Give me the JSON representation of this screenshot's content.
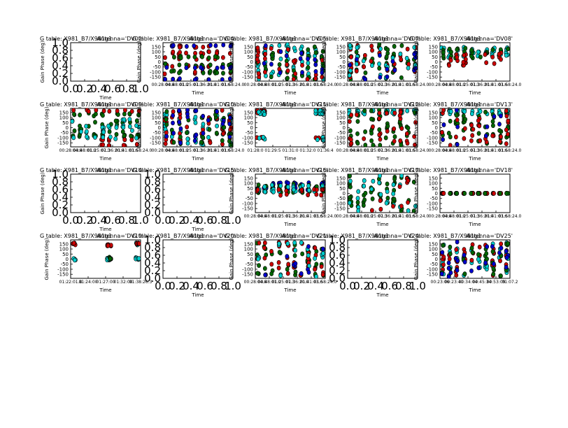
{
  "figure": {
    "background": "#ffffff"
  },
  "style": {
    "colors": {
      "red": "#cc0000",
      "green": "#006600",
      "cyan": "#00cccc",
      "blue": "#0000cc"
    }
  },
  "chart_data": [
    {
      "type": "scatter",
      "title_left": "G table: X981_B7/X981g1",
      "title_right": "Antenna='DV02'",
      "xlabel": "Time",
      "ylabel": "Gain Phase (deg)",
      "empty": true,
      "x_ticks": [
        "0.0",
        "0.2",
        "0.4",
        "0.6",
        "0.8",
        "1.0"
      ],
      "y_ticks": [
        "0.0",
        "0.2",
        "0.4",
        "0.6",
        "0.8",
        "1.0"
      ],
      "series": []
    },
    {
      "type": "scatter",
      "title_left": "G table: X981_B7/X981g1",
      "title_right": "Antenna='DV04'",
      "xlabel": "Time",
      "ylabel": "Gain Phase (deg)",
      "empty": false,
      "x_ticks": [
        "00:28:04.8",
        "00:48:01.0",
        "01:25:07.3",
        "01:36:20.0",
        "01:41:03.6",
        "01:58:24.0"
      ],
      "y_ticks": [
        "150",
        "100",
        "50",
        "0",
        "-50",
        "-100",
        "-150"
      ],
      "ylim": [
        -190,
        190
      ],
      "series": [
        {
          "color": "red",
          "pattern": "bands",
          "bands": [
            -110,
            -45,
            35,
            90,
            150
          ],
          "spread": 12,
          "n": 45
        },
        {
          "color": "green",
          "pattern": "bands",
          "bands": [
            -100,
            -30,
            45
          ],
          "spread": 12,
          "n": 35
        },
        {
          "color": "blue",
          "pattern": "bands",
          "bands": [
            -170,
            -60,
            160
          ],
          "spread": 8,
          "n": 30
        }
      ]
    },
    {
      "type": "scatter",
      "title_left": "G table: X981_B7/X981g1",
      "title_right": "Antenna='DV05'",
      "xlabel": "Time",
      "ylabel": "Gain Phase (deg)",
      "empty": false,
      "x_ticks": [
        "00:28:04.8",
        "00:48:01.0",
        "01:25:07.3",
        "01:36:20.0",
        "01:41:03.6",
        "01:58:24.0"
      ],
      "y_ticks": [
        "150",
        "100",
        "50",
        "0",
        "-50",
        "-100",
        "-150"
      ],
      "ylim": [
        -190,
        190
      ],
      "series": [
        {
          "color": "cyan",
          "pattern": "columns",
          "n": 60
        },
        {
          "color": "green",
          "pattern": "columns",
          "n": 35
        },
        {
          "color": "red",
          "pattern": "columns",
          "n": 30
        },
        {
          "color": "blue",
          "pattern": "columns",
          "n": 15
        }
      ]
    },
    {
      "type": "scatter",
      "title_left": "G table: X981_B7/X981g1",
      "title_right": "Antenna='DV07'",
      "xlabel": "Time",
      "ylabel": "Gain Phase (deg)",
      "empty": false,
      "x_ticks": [
        "00:28:04.8",
        "00:48:01.0",
        "01:25:07.3",
        "01:36:20.0",
        "01:41:03.6",
        "01:58:24.0"
      ],
      "y_ticks": [
        "150",
        "100",
        "50",
        "0",
        "-50",
        "-100",
        "-150"
      ],
      "ylim": [
        -190,
        190
      ],
      "series": [
        {
          "color": "green",
          "pattern": "columns",
          "n": 45
        },
        {
          "color": "red",
          "pattern": "columns",
          "n": 30
        },
        {
          "color": "cyan",
          "pattern": "columns",
          "n": 25
        },
        {
          "color": "blue",
          "pattern": "columns",
          "n": 15
        }
      ]
    },
    {
      "type": "scatter",
      "title_left": "G table: X981_B7/X981g1",
      "title_right": "Antenna='DV08'",
      "xlabel": "Time",
      "ylabel": "Gain Phase (deg)",
      "empty": false,
      "x_ticks": [
        "00:28:04.8",
        "00:48:01.0",
        "01:25:07.3",
        "01:36:20.0",
        "01:41:03.6",
        "01:58:24.0"
      ],
      "y_ticks": [
        "150",
        "100",
        "50",
        "0",
        "-50",
        "-100",
        "-150"
      ],
      "ylim": [
        -190,
        190
      ],
      "series": [
        {
          "color": "cyan",
          "pattern": "bands",
          "bands": [
            60,
            100,
            130
          ],
          "spread": 15,
          "n": 35
        },
        {
          "color": "green",
          "pattern": "bands",
          "bands": [
            50,
            90,
            120
          ],
          "spread": 15,
          "n": 30
        },
        {
          "color": "red",
          "pattern": "bands",
          "bands": [
            -20,
            30,
            80
          ],
          "spread": 20,
          "n": 25
        }
      ]
    },
    {
      "type": "scatter",
      "title_left": "G table: X981_B7/X981g1",
      "title_right": "Antenna='DV09'",
      "xlabel": "Time",
      "ylabel": "Gain Phase (deg)",
      "empty": false,
      "x_ticks": [
        "00:28:04.8",
        "00:48:01.0",
        "01:25:07.3",
        "01:36:20.0",
        "01:41:03.6",
        "01:58:24.0"
      ],
      "y_ticks": [
        "150",
        "100",
        "50",
        "0",
        "-50",
        "-100",
        "-150"
      ],
      "ylim": [
        -190,
        190
      ],
      "series": [
        {
          "color": "green",
          "pattern": "bands",
          "bands": [
            -80,
            -30,
            20,
            60,
            130
          ],
          "spread": 15,
          "n": 50
        },
        {
          "color": "red",
          "pattern": "bands",
          "bands": [
            -170,
            -120,
            170
          ],
          "spread": 10,
          "n": 25
        },
        {
          "color": "cyan",
          "pattern": "bands",
          "bands": [
            -100,
            -40,
            10,
            70
          ],
          "spread": 12,
          "n": 35
        }
      ]
    },
    {
      "type": "scatter",
      "title_left": "G table: X981_B7/X981g1",
      "title_right": "Antenna='DV10'",
      "xlabel": "Time",
      "ylabel": "Gain Phase (deg)",
      "empty": false,
      "x_ticks": [
        "00:28:04.8",
        "00:48:01.0",
        "01:25:07.3",
        "01:36:20.0",
        "01:41:03.6",
        "01:58:24.0"
      ],
      "y_ticks": [
        "150",
        "100",
        "50",
        "0",
        "-50",
        "-100",
        "-150"
      ],
      "ylim": [
        -190,
        190
      ],
      "series": [
        {
          "color": "cyan",
          "pattern": "columns",
          "n": 50
        },
        {
          "color": "red",
          "pattern": "columns",
          "n": 40
        },
        {
          "color": "green",
          "pattern": "columns",
          "n": 35
        },
        {
          "color": "blue",
          "pattern": "columns",
          "n": 25
        }
      ]
    },
    {
      "type": "scatter",
      "title_left": "G table: X981_B7/X981g1",
      "title_right": "Antenna='DV11'",
      "xlabel": "Time",
      "ylabel": "Gain Phase (deg)",
      "empty": false,
      "x_ticks": [
        "01:28:0",
        "01:29:5",
        "01:31:0",
        "01:32:0",
        "01:36:4"
      ],
      "y_ticks": [
        "150",
        "100",
        "50",
        "0",
        "-50",
        "-100",
        "-150"
      ],
      "ylim": [
        -190,
        190
      ],
      "series": [
        {
          "color": "red",
          "pattern": "edges",
          "n": 35
        },
        {
          "color": "cyan",
          "pattern": "edges",
          "n": 30
        }
      ]
    },
    {
      "type": "scatter",
      "title_left": "G table: X981_B7/X981g1",
      "title_right": "Antenna='DV12'",
      "xlabel": "Time",
      "ylabel": "Gain Phase (deg)",
      "empty": false,
      "x_ticks": [
        "00:28:04.8",
        "00:48:01.0",
        "01:25:07.3",
        "01:36:20.0",
        "01:41:03.6",
        "01:58:24.0"
      ],
      "y_ticks": [
        "150",
        "100",
        "50",
        "0",
        "-50",
        "-100",
        "-150"
      ],
      "ylim": [
        -190,
        190
      ],
      "series": [
        {
          "color": "cyan",
          "pattern": "bands",
          "bands": [
            140,
            165
          ],
          "spread": 8,
          "n": 30
        },
        {
          "color": "green",
          "pattern": "columns",
          "n": 45
        },
        {
          "color": "red",
          "pattern": "columns",
          "n": 35
        }
      ]
    },
    {
      "type": "scatter",
      "title_left": "G table: X981_B7/X981g1",
      "title_right": "Antenna='DV13'",
      "xlabel": "Time",
      "ylabel": "Gain Phase (deg)",
      "empty": false,
      "x_ticks": [
        "00:28:04.8",
        "00:48:01.0",
        "01:25:07.3",
        "01:36:20.0",
        "01:41:03.6",
        "01:58:24.0"
      ],
      "y_ticks": [
        "150",
        "100",
        "50",
        "0",
        "-50",
        "-100",
        "-150"
      ],
      "ylim": [
        -190,
        190
      ],
      "series": [
        {
          "color": "cyan",
          "pattern": "bands",
          "bands": [
            140,
            165
          ],
          "spread": 8,
          "n": 35
        },
        {
          "color": "green",
          "pattern": "columns",
          "n": 45
        },
        {
          "color": "red",
          "pattern": "columns",
          "n": 30
        },
        {
          "color": "blue",
          "pattern": "columns",
          "n": 10
        }
      ]
    },
    {
      "type": "scatter",
      "title_left": "G table: X981_B7/X981g1",
      "title_right": "Antenna='DV14'",
      "xlabel": "Time",
      "ylabel": "Gain Phase (deg)",
      "empty": true,
      "x_ticks": [
        "0.0",
        "0.2",
        "0.4",
        "0.6",
        "0.8",
        "1.0"
      ],
      "y_ticks": [
        "0.0",
        "0.2",
        "0.4",
        "0.6",
        "0.8",
        "1.0"
      ],
      "series": []
    },
    {
      "type": "scatter",
      "title_left": "G table: X981_B7/X981g1",
      "title_right": "Antenna='DV15'",
      "xlabel": "Time",
      "ylabel": "Gain Phase (deg)",
      "empty": true,
      "x_ticks": [
        "0.0",
        "0.2",
        "0.4",
        "0.6",
        "0.8",
        "1.0"
      ],
      "y_ticks": [
        "0.0",
        "0.2",
        "0.4",
        "0.6",
        "0.8",
        "1.0"
      ],
      "series": []
    },
    {
      "type": "scatter",
      "title_left": "G table: X981_B7/X981g1",
      "title_right": "Antenna='DV16'",
      "xlabel": "Time",
      "ylabel": "Gain Phase (deg)",
      "empty": false,
      "x_ticks": [
        "00:28:04.8",
        "00:48:01.0",
        "01:25:07.3",
        "01:36:20.0",
        "01:41:03.6",
        "01:58:24.0"
      ],
      "y_ticks": [
        "150",
        "100",
        "50",
        "0",
        "-50",
        "-100",
        "-150"
      ],
      "ylim": [
        -190,
        190
      ],
      "series": [
        {
          "color": "blue",
          "pattern": "bands",
          "bands": [
            40,
            60,
            100
          ],
          "spread": 15,
          "n": 40
        },
        {
          "color": "green",
          "pattern": "bands",
          "bands": [
            20,
            50,
            80
          ],
          "spread": 15,
          "n": 40
        },
        {
          "color": "cyan",
          "pattern": "bands",
          "bands": [
            30,
            70
          ],
          "spread": 15,
          "n": 30
        },
        {
          "color": "red",
          "pattern": "bands",
          "bands": [
            -10,
            30
          ],
          "spread": 10,
          "n": 15
        }
      ]
    },
    {
      "type": "scatter",
      "title_left": "G table: X981_B7/X981g1",
      "title_right": "Antenna='DV17'",
      "xlabel": "Time",
      "ylabel": "Gain Phase (deg)",
      "empty": false,
      "x_ticks": [
        "00:28:04.8",
        "00:48:01.0",
        "01:25:07.3",
        "01:36:20.0",
        "01:41:03.6",
        "01:58:24.0"
      ],
      "y_ticks": [
        "150",
        "100",
        "50",
        "0",
        "-50",
        "-100",
        "-150"
      ],
      "ylim": [
        -190,
        190
      ],
      "series": [
        {
          "color": "green",
          "pattern": "columns",
          "n": 50
        },
        {
          "color": "cyan",
          "pattern": "columns",
          "n": 25
        },
        {
          "color": "red",
          "pattern": "columns",
          "n": 10
        }
      ]
    },
    {
      "type": "scatter",
      "title_left": "G table: X981_B7/X981g1",
      "title_right": "Antenna='DV18'",
      "xlabel": "Time",
      "ylabel": "Gain Phase (deg)",
      "empty": false,
      "x_ticks": [
        "00:28:04.8",
        "00:48:01.0",
        "01:25:07.3",
        "01:36:20.0",
        "01:41:03.6",
        "01:58:24.0"
      ],
      "y_ticks": [
        "150",
        "100",
        "50",
        "0",
        "-50",
        "-100",
        "-150"
      ],
      "ylim": [
        -190,
        190
      ],
      "series": [
        {
          "color": "red",
          "pattern": "bands",
          "bands": [
            0
          ],
          "spread": 0.5,
          "n": 40
        },
        {
          "color": "green",
          "pattern": "bands",
          "bands": [
            0
          ],
          "spread": 0.5,
          "n": 15
        }
      ]
    },
    {
      "type": "scatter",
      "title_left": "G table: X981_B7/X981g1",
      "title_right": "Antenna='DV19'",
      "xlabel": "Time",
      "ylabel": "Gain Phase (deg)",
      "empty": false,
      "x_ticks": [
        "01:22:01.8",
        "01:24:00",
        "01:27:00",
        "01:32:00",
        "01:38:26.3"
      ],
      "y_ticks": [
        "150",
        "100",
        "50",
        "0",
        "-50",
        "-100",
        "-150"
      ],
      "ylim": [
        -190,
        190
      ],
      "series": [
        {
          "color": "cyan",
          "pattern": "clusters",
          "centers": [
            [
              0.05,
              0
            ],
            [
              0.55,
              0
            ],
            [
              0.95,
              5
            ],
            [
              0.95,
              150
            ]
          ],
          "n": 30
        },
        {
          "color": "red",
          "pattern": "clusters",
          "centers": [
            [
              0.05,
              150
            ],
            [
              0.55,
              140
            ],
            [
              0.95,
              155
            ]
          ],
          "n": 20
        },
        {
          "color": "green",
          "pattern": "clusters",
          "centers": [
            [
              0.55,
              10
            ]
          ],
          "n": 6
        }
      ]
    },
    {
      "type": "scatter",
      "title_left": "G table: X981_B7/X981g1",
      "title_right": "Antenna='DV20'",
      "xlabel": "Time",
      "ylabel": "Gain Phase (deg)",
      "empty": true,
      "x_ticks": [
        "0.0",
        "0.2",
        "0.4",
        "0.6",
        "0.8",
        "1.0"
      ],
      "y_ticks": [
        "0.0",
        "0.2",
        "0.4",
        "0.6",
        "0.8",
        "1.0"
      ],
      "series": []
    },
    {
      "type": "scatter",
      "title_left": "G table: X981_B7/X981g1",
      "title_right": "Antenna='DV21'",
      "xlabel": "Time",
      "ylabel": "Gain Phase (deg)",
      "empty": false,
      "x_ticks": [
        "00:28:04.8",
        "00:48:01.0",
        "01:25:07.3",
        "01:36:20.0",
        "01:41:03.6",
        "01:58:24.0"
      ],
      "y_ticks": [
        "150",
        "100",
        "50",
        "0",
        "-50",
        "-100",
        "-150"
      ],
      "ylim": [
        -190,
        190
      ],
      "series": [
        {
          "color": "green",
          "pattern": "columns",
          "n": 45
        },
        {
          "color": "red",
          "pattern": "columns",
          "n": 35
        },
        {
          "color": "cyan",
          "pattern": "columns",
          "n": 20
        },
        {
          "color": "blue",
          "pattern": "columns",
          "n": 10
        }
      ]
    },
    {
      "type": "scatter",
      "title_left": "G table: X981_B7/X981g1",
      "title_right": "Antenna='DV24'",
      "xlabel": "Time",
      "ylabel": "Gain Phase (deg)",
      "empty": true,
      "x_ticks": [
        "0.0",
        "0.2",
        "0.4",
        "0.6",
        "0.8",
        "1.0"
      ],
      "y_ticks": [
        "0.0",
        "0.2",
        "0.4",
        "0.6",
        "0.8",
        "1.0"
      ],
      "series": []
    },
    {
      "type": "scatter",
      "title_left": "G table: X981_B7/X981g1",
      "title_right": "Antenna='DV25'",
      "xlabel": "Time",
      "ylabel": "Gain Phase (deg)",
      "empty": false,
      "x_ticks": [
        "00:23:06",
        "00:23:41",
        "00:34:04",
        "00:45:34",
        "00:53:09",
        "01:07.2"
      ],
      "y_ticks": [
        "150",
        "100",
        "50",
        "0",
        "-50",
        "-100",
        "-150"
      ],
      "ylim": [
        -190,
        190
      ],
      "series": [
        {
          "color": "cyan",
          "pattern": "columns",
          "n": 40
        },
        {
          "color": "red",
          "pattern": "columns",
          "n": 40
        },
        {
          "color": "green",
          "pattern": "columns",
          "n": 30
        },
        {
          "color": "blue",
          "pattern": "columns",
          "n": 25
        }
      ]
    }
  ]
}
